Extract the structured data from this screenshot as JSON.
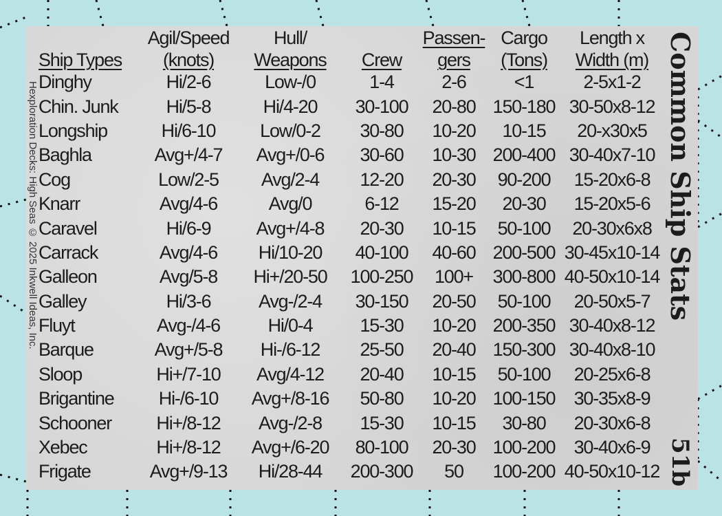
{
  "card": {
    "title": "Common Ship Stats",
    "card_number": "51b",
    "credit": "Hexploration Decks: High Seas © 2025 Inkwell Ideas, Inc.",
    "colors": {
      "background": "#b9e3e5",
      "panel": "#d6d6d6",
      "text": "#1c1c1c"
    }
  },
  "table": {
    "headers": [
      {
        "line1": "",
        "line2": "Ship Types"
      },
      {
        "line1": "Agil/Speed",
        "line2": "(knots)"
      },
      {
        "line1": "Hull/",
        "line2": "Weapons"
      },
      {
        "line1": "",
        "line2": "Crew"
      },
      {
        "line1": "Passen-",
        "line2": "gers"
      },
      {
        "line1": "Cargo",
        "line2": "(Tons)"
      },
      {
        "line1": "Length x",
        "line2": "Width (m)"
      }
    ],
    "rows": [
      [
        "Dinghy",
        "Hi/2-6",
        "Low-/0",
        "1-4",
        "2-6",
        "<1",
        "2-5x1-2"
      ],
      [
        "Chin. Junk",
        "Hi/5-8",
        "Hi/4-20",
        "30-100",
        "20-80",
        "150-180",
        "30-50x8-12"
      ],
      [
        "Longship",
        "Hi/6-10",
        "Low/0-2",
        "30-80",
        "10-20",
        "10-15",
        "20-x30x5"
      ],
      [
        "Baghla",
        "Avg+/4-7",
        "Avg+/0-6",
        "30-60",
        "10-30",
        "200-400",
        "30-40x7-10"
      ],
      [
        "Cog",
        "Low/2-5",
        "Avg/2-4",
        "12-20",
        "20-30",
        "90-200",
        "15-20x6-8"
      ],
      [
        "Knarr",
        "Avg/4-6",
        "Avg/0",
        "6-12",
        "15-20",
        "20-30",
        "15-20x5-6"
      ],
      [
        "Caravel",
        "Hi/6-9",
        "Avg+/4-8",
        "20-30",
        "10-15",
        "50-100",
        "20-30x6x8"
      ],
      [
        "Carrack",
        "Avg/4-6",
        "Hi/10-20",
        "40-100",
        "40-60",
        "200-500",
        "30-45x10-14"
      ],
      [
        "Galleon",
        "Avg/5-8",
        "Hi+/20-50",
        "100-250",
        "100+",
        "300-800",
        "40-50x10-14"
      ],
      [
        "Galley",
        "Hi/3-6",
        "Avg-/2-4",
        "30-150",
        "20-50",
        "50-100",
        "20-50x5-7"
      ],
      [
        "Fluyt",
        "Avg-/4-6",
        "Hi/0-4",
        "15-30",
        "10-20",
        "200-350",
        "30-40x8-12"
      ],
      [
        "Barque",
        "Avg+/5-8",
        "Hi-/6-12",
        "25-50",
        "20-40",
        "150-300",
        "30-40x8-10"
      ],
      [
        "Sloop",
        "Hi+/7-10",
        "Avg/4-12",
        "20-40",
        "10-15",
        "50-100",
        "20-25x6-8"
      ],
      [
        "Brigantine",
        "Hi-/6-10",
        "Avg+/8-16",
        "50-80",
        "10-20",
        "100-150",
        "30-35x8-9"
      ],
      [
        "Schooner",
        "Hi+/8-12",
        "Avg-/2-8",
        "15-30",
        "10-15",
        "30-80",
        "20-30x6-8"
      ],
      [
        "Xebec",
        "Hi+/8-12",
        "Avg+/6-20",
        "80-100",
        "20-30",
        "100-200",
        "30-40x6-9"
      ],
      [
        "Frigate",
        "Avg+/9-13",
        "Hi/28-44",
        "200-300",
        "50",
        "100-200",
        "40-50x10-12"
      ]
    ]
  }
}
